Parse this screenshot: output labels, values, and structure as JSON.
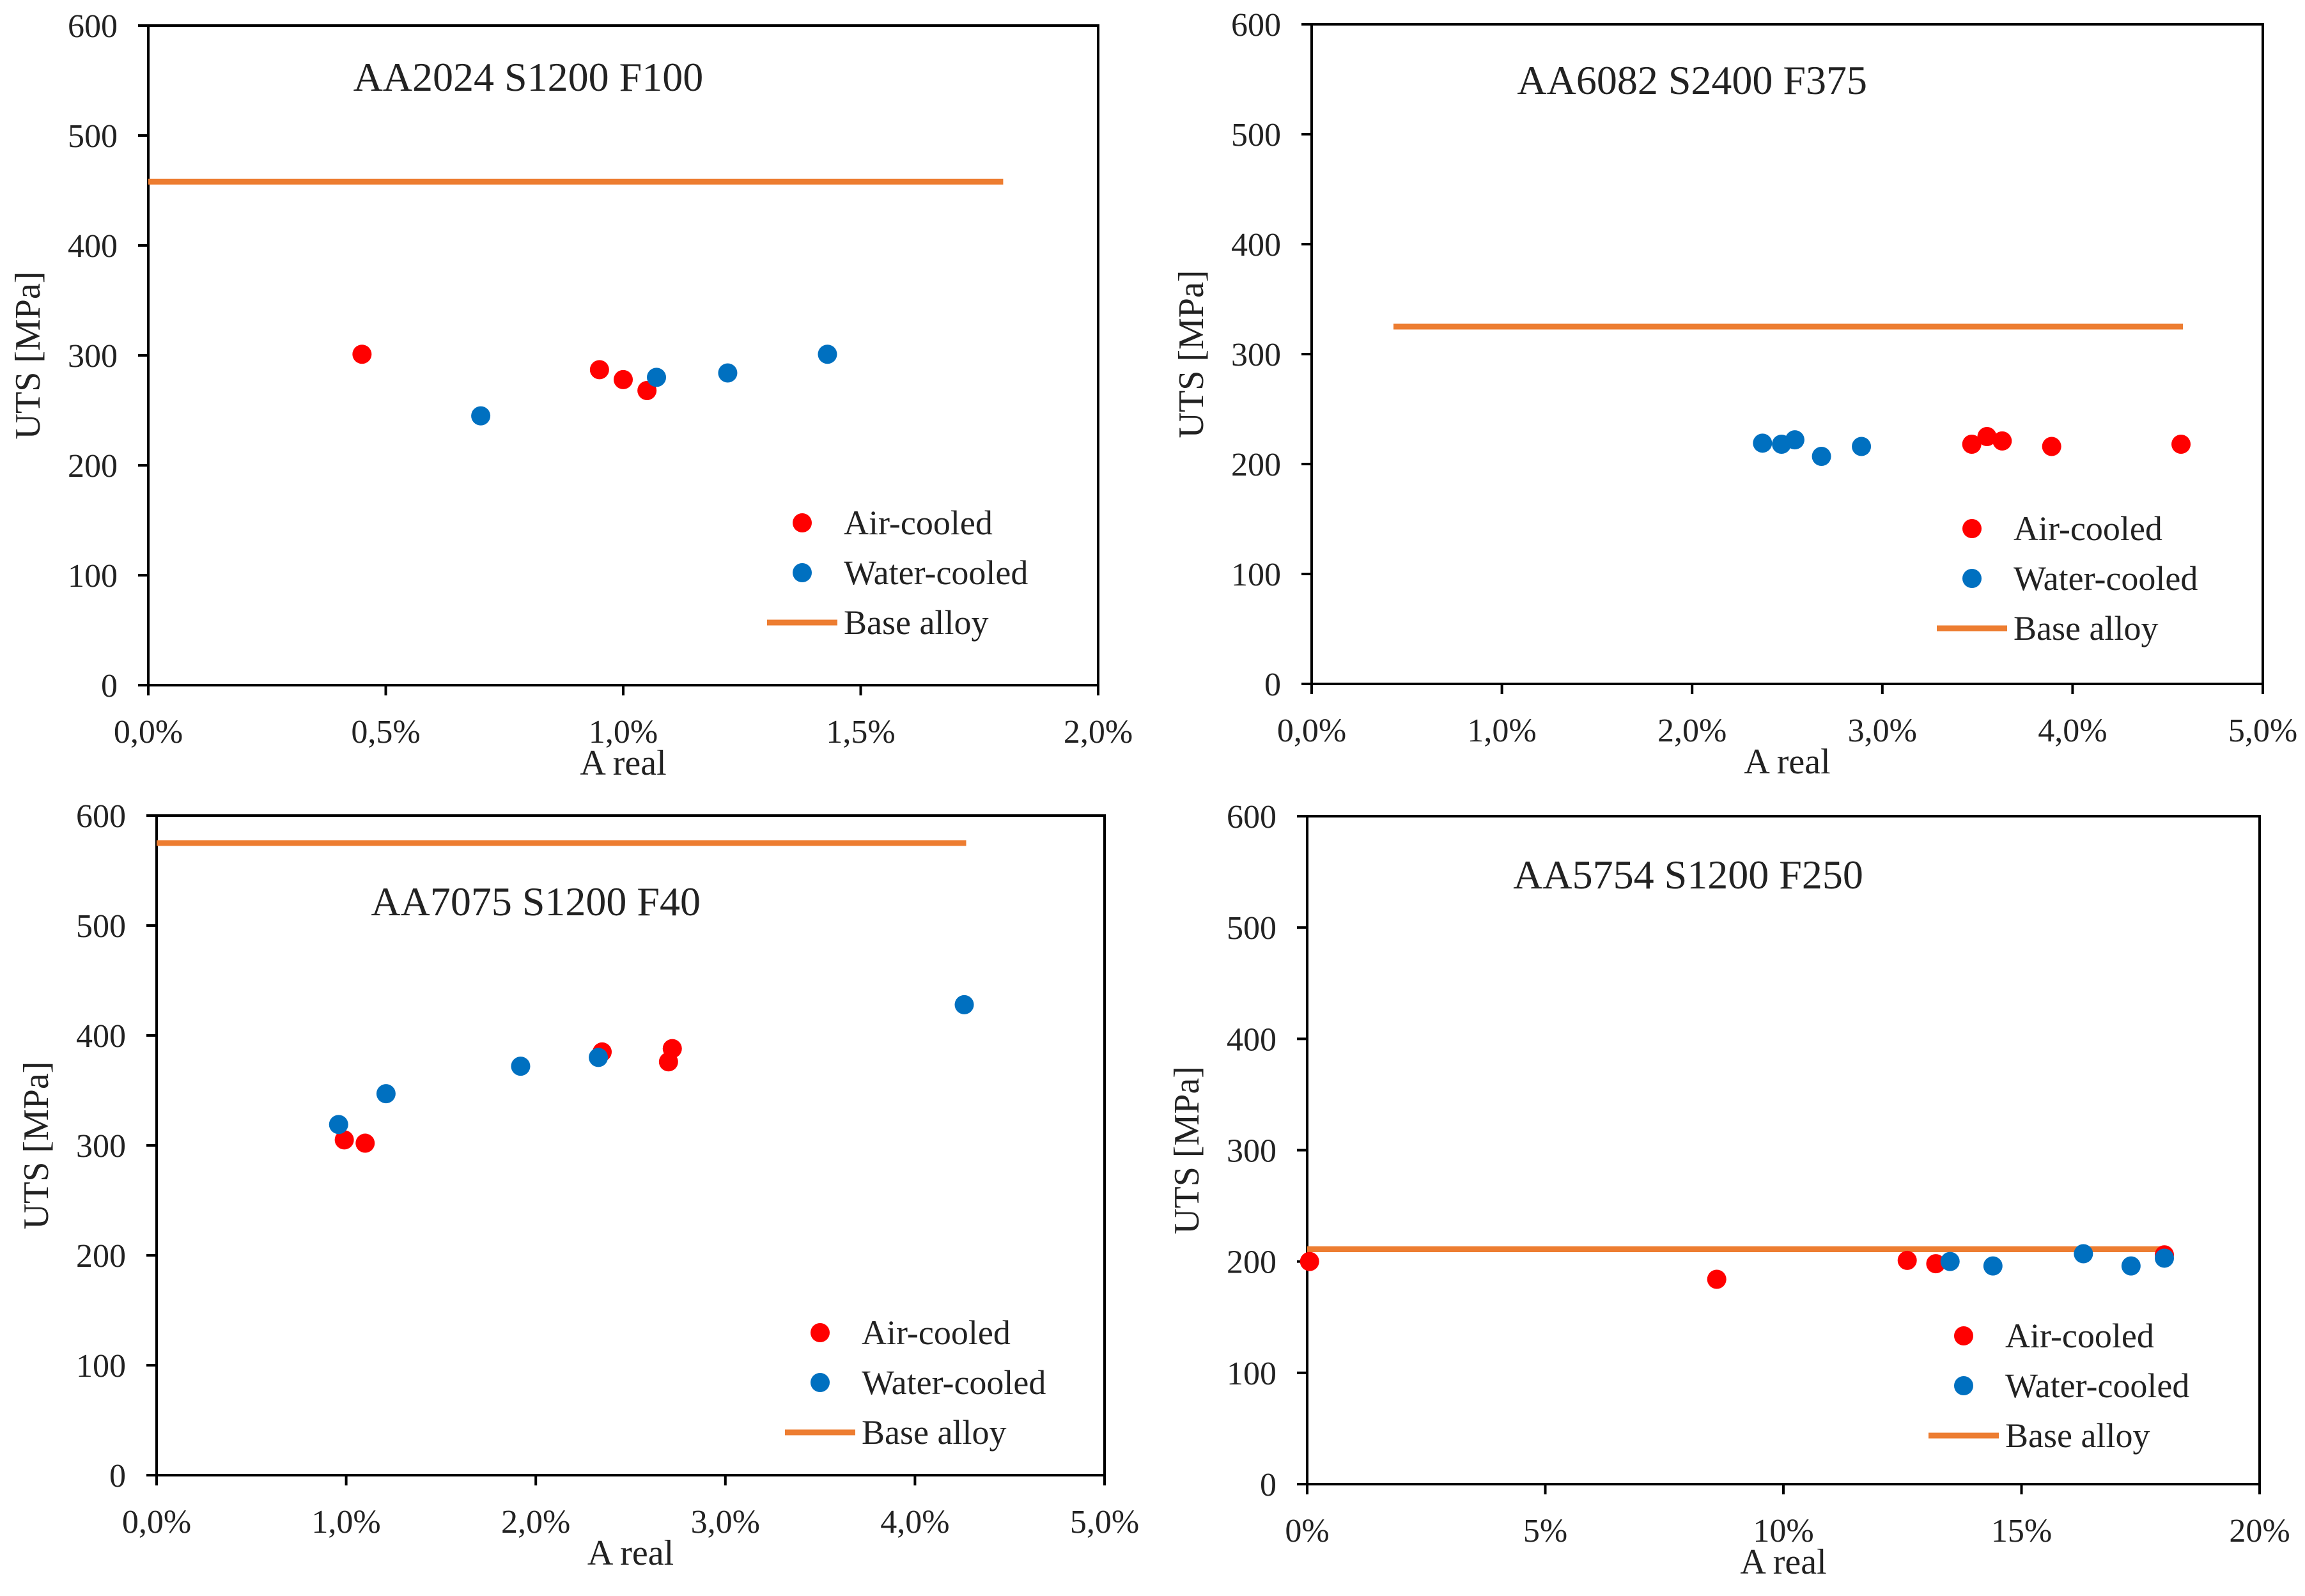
{
  "colors": {
    "air": "#ff0000",
    "water": "#0070c0",
    "base": "#ed7d31",
    "axis": "#000000",
    "text": "#222222"
  },
  "legend": {
    "air": "Air-cooled",
    "water": "Water-cooled",
    "base": "Base alloy"
  },
  "chart_data": [
    {
      "type": "scatter",
      "title": "AA2024 S1200 F100",
      "xlabel": "A real",
      "ylabel": "UTS [MPa]",
      "xlim": [
        0,
        0.02
      ],
      "ylim": [
        0,
        600
      ],
      "xticks": [
        0,
        0.005,
        0.01,
        0.015,
        0.02
      ],
      "xtick_labels": [
        "0,0%",
        "0,5%",
        "1,0%",
        "1,5%",
        "2,0%"
      ],
      "yticks": [
        0,
        100,
        200,
        300,
        400,
        500,
        600
      ],
      "ytick_labels": [
        "0",
        "100",
        "200",
        "300",
        "400",
        "500",
        "600"
      ],
      "series": [
        {
          "name": "Air-cooled",
          "points": [
            [
              0.0045,
              301
            ],
            [
              0.0095,
              287
            ],
            [
              0.01,
              278
            ],
            [
              0.0105,
              268
            ]
          ]
        },
        {
          "name": "Water-cooled",
          "points": [
            [
              0.007,
              245
            ],
            [
              0.0107,
              280
            ],
            [
              0.0122,
              284
            ],
            [
              0.0143,
              301
            ]
          ]
        }
      ],
      "base_alloy": {
        "value": 458,
        "x_range": [
          0,
          0.018
        ]
      },
      "legend_position": "bottom-right"
    },
    {
      "type": "scatter",
      "title": "AA6082 S2400 F375",
      "xlabel": "A real",
      "ylabel": "UTS [MPa]",
      "xlim": [
        0,
        0.05
      ],
      "ylim": [
        0,
        600
      ],
      "xticks": [
        0,
        0.01,
        0.02,
        0.03,
        0.04,
        0.05
      ],
      "xtick_labels": [
        "0,0%",
        "1,0%",
        "2,0%",
        "3,0%",
        "4,0%",
        "5,0%"
      ],
      "yticks": [
        0,
        100,
        200,
        300,
        400,
        500,
        600
      ],
      "ytick_labels": [
        "0",
        "100",
        "200",
        "300",
        "400",
        "500",
        "600"
      ],
      "series": [
        {
          "name": "Air-cooled",
          "points": [
            [
              0.0347,
              218
            ],
            [
              0.0355,
              225
            ],
            [
              0.0363,
              221
            ],
            [
              0.0389,
              216
            ],
            [
              0.0457,
              218
            ]
          ]
        },
        {
          "name": "Water-cooled",
          "points": [
            [
              0.0237,
              219
            ],
            [
              0.0247,
              218
            ],
            [
              0.0254,
              222
            ],
            [
              0.0268,
              207
            ],
            [
              0.0289,
              216
            ]
          ]
        }
      ],
      "base_alloy": {
        "value": 325,
        "x_range": [
          0.0043,
          0.0458
        ]
      },
      "legend_position": "bottom-right"
    },
    {
      "type": "scatter",
      "title": "AA7075 S1200 F40",
      "xlabel": "A real",
      "ylabel": "UTS [MPa]",
      "xlim": [
        0,
        0.05
      ],
      "ylim": [
        0,
        600
      ],
      "xticks": [
        0,
        0.01,
        0.02,
        0.03,
        0.04,
        0.05
      ],
      "xtick_labels": [
        "0,0%",
        "1,0%",
        "2,0%",
        "3,0%",
        "4,0%",
        "5,0%"
      ],
      "yticks": [
        0,
        100,
        200,
        300,
        400,
        500,
        600
      ],
      "ytick_labels": [
        "0",
        "100",
        "200",
        "300",
        "400",
        "500",
        "600"
      ],
      "series": [
        {
          "name": "Air-cooled",
          "points": [
            [
              0.0099,
              305
            ],
            [
              0.011,
              302
            ],
            [
              0.0235,
              385
            ],
            [
              0.027,
              376
            ],
            [
              0.0272,
              388
            ]
          ]
        },
        {
          "name": "Water-cooled",
          "points": [
            [
              0.0096,
              319
            ],
            [
              0.0121,
              347
            ],
            [
              0.0192,
              372
            ],
            [
              0.0233,
              380
            ],
            [
              0.0426,
              428
            ]
          ]
        }
      ],
      "base_alloy": {
        "value": 575,
        "x_range": [
          0,
          0.0427
        ]
      },
      "legend_position": "bottom-right"
    },
    {
      "type": "scatter",
      "title": "AA5754 S1200 F250",
      "xlabel": "A real",
      "ylabel": "UTS [MPa]",
      "xlim": [
        0,
        0.2
      ],
      "ylim": [
        0,
        600
      ],
      "xticks": [
        0,
        0.05,
        0.1,
        0.15,
        0.2
      ],
      "xtick_labels": [
        "0%",
        "5%",
        "10%",
        "15%",
        "20%"
      ],
      "yticks": [
        0,
        100,
        200,
        300,
        400,
        500,
        600
      ],
      "ytick_labels": [
        "0",
        "100",
        "200",
        "300",
        "400",
        "500",
        "600"
      ],
      "series": [
        {
          "name": "Air-cooled",
          "points": [
            [
              0.0005,
              200
            ],
            [
              0.086,
              184
            ],
            [
              0.126,
              201
            ],
            [
              0.132,
              198
            ],
            [
              0.18,
              206
            ]
          ]
        },
        {
          "name": "Water-cooled",
          "points": [
            [
              0.135,
              200
            ],
            [
              0.144,
              196
            ],
            [
              0.163,
              207
            ],
            [
              0.173,
              196
            ],
            [
              0.18,
              203
            ]
          ]
        }
      ],
      "base_alloy": {
        "value": 211,
        "x_range": [
          0,
          0.18
        ]
      },
      "legend_position": "bottom-right"
    }
  ]
}
